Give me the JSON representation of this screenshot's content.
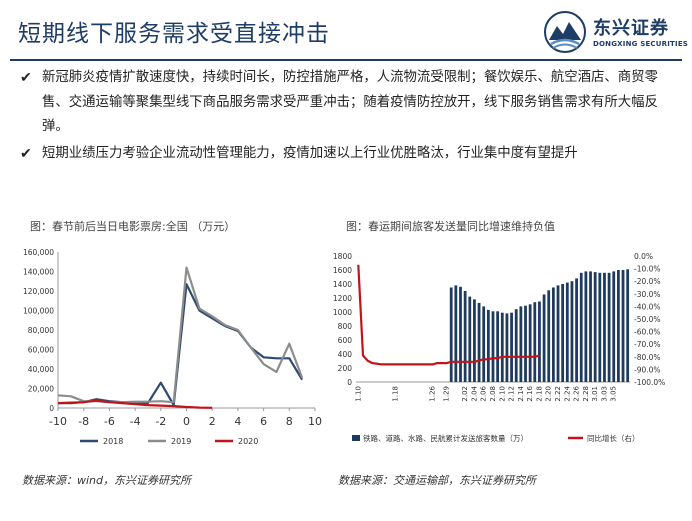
{
  "header": {
    "title": "短期线下服务需求受直接冲击",
    "logo_cn": "东兴证券",
    "logo_en": "DONGXING SECURITIES"
  },
  "bullets": [
    "新冠肺炎疫情扩散速度快，持续时间长，防控措施严格，人流物流受限制；餐饮娱乐、航空酒店、商贸零售、交通运输等聚集型线下商品服务需求受严重冲击；随着疫情防控放开，线下服务销售需求有所大幅反弹。",
    "短期业绩压力考验企业流动性管理能力，疫情加速以上行业优胜略汰，行业集中度有望提升"
  ],
  "colors": {
    "navy": "#1d3c66",
    "s2018": "#2e4a73",
    "s2019": "#8c8c8c",
    "s2020": "#c0141c",
    "bars": "#1f3a5f"
  },
  "sources": {
    "left": "数据来源：wind，东兴证券研究所",
    "right": "数据来源：交通运输部，东兴证券研究所"
  },
  "chart_data": [
    {
      "type": "line",
      "title": "图：春节前后当日电影票房:全国 （万元）",
      "x": [
        -10,
        -9,
        -8,
        -7,
        -6,
        -5,
        -4,
        -3,
        -2,
        -1,
        0,
        1,
        2,
        3,
        4,
        5,
        6,
        7,
        8,
        9,
        10
      ],
      "xticks": [
        -10,
        -8,
        -6,
        -4,
        -2,
        0,
        2,
        4,
        6,
        8,
        10
      ],
      "xlim": [
        -10,
        10
      ],
      "ylim": [
        0,
        160000
      ],
      "yticks": [
        0,
        20000,
        40000,
        60000,
        80000,
        100000,
        120000,
        140000,
        160000
      ],
      "ytick_labels": [
        "0",
        "20,000",
        "40,000",
        "60,000",
        "80,000",
        "100,000",
        "120,000",
        "140,000",
        "160,000"
      ],
      "grid": false,
      "legend": "bottom",
      "series": [
        {
          "name": "2018",
          "color": "#2e4a73",
          "values": [
            5000,
            5000,
            6000,
            9000,
            7000,
            6000,
            5500,
            5000,
            26000,
            3000,
            127000,
            100000,
            92000,
            84000,
            79000,
            62000,
            52000,
            51000,
            51000,
            29000,
            null
          ]
        },
        {
          "name": "2019",
          "color": "#8c8c8c",
          "values": [
            13000,
            12000,
            7000,
            7000,
            6000,
            6000,
            6500,
            6500,
            7000,
            6000,
            144000,
            102000,
            94000,
            85000,
            80000,
            62000,
            45000,
            37000,
            66000,
            31000,
            null
          ]
        },
        {
          "name": "2020",
          "color": "#c0141c",
          "values": [
            5000,
            5500,
            6000,
            7500,
            6000,
            5000,
            4000,
            3000,
            2500,
            2000,
            1000,
            400,
            200,
            null,
            null,
            null,
            null,
            null,
            null,
            null,
            null
          ]
        }
      ]
    },
    {
      "type": "bar",
      "title": "图：春运期间旅客发送量同比增速维持负值",
      "categories": [
        "1.10",
        "1.11",
        "1.12",
        "1.13",
        "1.14",
        "1.15",
        "1.16",
        "1.17",
        "1.18",
        "1.19",
        "1.20",
        "1.21",
        "1.22",
        "1.23",
        "1.24",
        "1.25",
        "1.26",
        "1.27",
        "1.28",
        "1.29",
        "1.30",
        "1.31",
        "2.01",
        "2.02",
        "2.03",
        "2.04",
        "2.05",
        "2.06",
        "2.07",
        "2.08",
        "2.09",
        "2.10",
        "2.11",
        "2.12",
        "2.13",
        "2.14",
        "2.15",
        "2.16",
        "2.17",
        "2.18",
        "2.19",
        "2.20",
        "2.21",
        "2.22",
        "2.23",
        "2.24",
        "2.25",
        "2.26",
        "2.27",
        "2.28",
        "2.29",
        "3.01",
        "3.02",
        "3.03",
        "3.04",
        "3.05",
        "3.06",
        "3.07",
        "3.08"
      ],
      "xtick_labels": [
        "1.10",
        "1.18",
        "1.26",
        "1.29",
        "2.02",
        "2.04",
        "2.06",
        "2.08",
        "2.10",
        "2.12",
        "2.14",
        "2.16",
        "2.18",
        "2.20",
        "2.22",
        "2.24",
        "2.26",
        "2.28",
        "3.01",
        "3.03",
        "3.05"
      ],
      "ylim_left": [
        0,
        1800
      ],
      "yticks_left": [
        0,
        200,
        400,
        600,
        800,
        1000,
        1200,
        1400,
        1600,
        1800
      ],
      "ylim_right": [
        -100,
        0
      ],
      "yticks_right_labels": [
        "0.0%",
        "-10.0%",
        "-20.0%",
        "-30.0%",
        "-40.0%",
        "-50.0%",
        "-60.0%",
        "-70.0%",
        "-80.0%",
        "-90.0%",
        "-100.0%"
      ],
      "grid": false,
      "legend": "bottom",
      "series": [
        {
          "name": "铁路、道路、水路、民航累计发送旅客数量（万）",
          "axis": "left",
          "type": "bar",
          "color": "#1f3a5f",
          "values": [
            null,
            null,
            null,
            null,
            null,
            null,
            null,
            null,
            null,
            null,
            null,
            null,
            null,
            null,
            null,
            null,
            null,
            null,
            null,
            null,
            1350,
            1380,
            1360,
            1300,
            1220,
            1180,
            1130,
            1080,
            1030,
            1010,
            1010,
            990,
            980,
            990,
            1040,
            1080,
            1090,
            1110,
            1140,
            1150,
            1250,
            1310,
            1350,
            1380,
            1400,
            1420,
            1440,
            1480,
            1560,
            1580,
            1580,
            1570,
            1560,
            1560,
            1560,
            1580,
            1600,
            1600,
            1610
          ]
        },
        {
          "name": "同比增长（右）",
          "axis": "right",
          "type": "line",
          "color": "#c0141c",
          "values": [
            -7,
            -79,
            -83,
            -85,
            -85.5,
            -86,
            -86,
            -86,
            -86,
            -86,
            -86,
            -86,
            -86,
            -86,
            -86,
            -86,
            -86,
            -85,
            -85,
            -85,
            -84,
            -84,
            -84,
            -84,
            -84,
            -84,
            -83,
            -82,
            -82,
            -81,
            -81,
            -80,
            -80,
            -80,
            -80,
            -80,
            -80,
            -80,
            -80,
            -79,
            null,
            null,
            null,
            null,
            null,
            null,
            null,
            null,
            null,
            null,
            null,
            null,
            null,
            null,
            null,
            null,
            null,
            null,
            null
          ]
        }
      ]
    }
  ]
}
